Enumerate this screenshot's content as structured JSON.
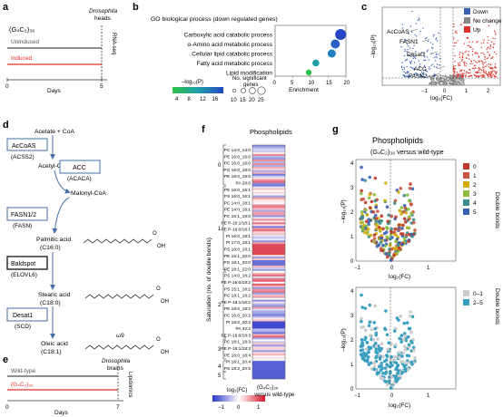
{
  "panel_labels": {
    "a": "a",
    "b": "b",
    "c": "c",
    "d": "d",
    "e": "e",
    "f": "f",
    "g": "g"
  },
  "panel_a": {
    "genotype": "(G₄C₂)₃₆",
    "uninduced": "Uninduced",
    "induced": "Induced",
    "endpoint": "Drosophila heads",
    "assay": "RNA-seq",
    "axis_label": "Days",
    "ticks": [
      "0",
      "5"
    ],
    "colors": {
      "uninduced": "#4a4a4a",
      "induced": "#e0322a"
    }
  },
  "panel_b": {
    "title": "GO biological process (down regulated genes)",
    "xlabel": "Enrichment",
    "legend_size_title": "No. significant genes",
    "legend_color_title": "–log₁₀(P)",
    "size_ticks": [
      "10",
      "15",
      "20",
      "25"
    ],
    "color_ticks": [
      "4",
      "8",
      "12",
      "16"
    ]
  },
  "panel_c": {
    "ylabel": "–log₁₀(P)",
    "xlabel": "log₂(FC)",
    "legend": [
      "Down",
      "No change",
      "Up"
    ],
    "colors": {
      "down": "#3a62b5",
      "nochange": "#8a8a8a",
      "up": "#e0322a"
    },
    "gene_labels": [
      "AcCoAS",
      "FASN1",
      "Desat1",
      "ACC",
      "FASN2"
    ],
    "xticks": [
      "−1",
      "0",
      "1",
      "2"
    ]
  },
  "panel_d": {
    "start": "Acetate + CoA",
    "enzymes": [
      {
        "name": "AcCoAS",
        "human": "(ACSS2)"
      },
      {
        "name": "ACC",
        "human": "(ACACA)"
      },
      {
        "name": "FASN1/2",
        "human": "(FASN)"
      },
      {
        "name": "Baldspot",
        "human": "(ELOVL6)"
      },
      {
        "name": "Desat1",
        "human": "(SCD)"
      }
    ],
    "metabolites": [
      "Acetyl-CoA",
      "Malonyl-CoA",
      "Palmitic acid",
      "(C16:0)",
      "Stearic acid",
      "(C18:0)",
      "Oleic acid",
      "(C18:1)"
    ],
    "oh": "OH",
    "o": "O",
    "omega": "ω9"
  },
  "panel_e": {
    "wildtype": "Wild-type",
    "mutant": "(G₄C₂)₃₆",
    "endpoint": "Drosophila brains",
    "assay": "Lipidomics",
    "axis_label": "Days",
    "ticks": [
      "0",
      "7"
    ]
  },
  "panel_f": {
    "title": "Phospholipids",
    "ylabel": "Saturation (no. of double bonds)",
    "colorbar_title": "log₂(FC)",
    "colorbar_ticks": [
      "−1",
      "0",
      "1"
    ],
    "column_label_1": "(G₄C₂)₃₆",
    "column_label_2": "versus wild-type",
    "groups": [
      "0",
      "1",
      "2",
      "3",
      "4",
      "5"
    ],
    "lipids": [
      "PC 14:0_14:0",
      "PE 16:0_16:0",
      "PC 16:0_16:0",
      "PG 16:0_18:0",
      "PE 18:0_18:0",
      "PA 28:0",
      "PE 16:0_16:1",
      "PS 16:0_16:1",
      "PC 14:0_18:1",
      "PE 14:0_18:1",
      "PC 16:1_18:0",
      "PE P-16:1/18:1",
      "PE P-16:0/18:1",
      "PI 16:0_18:1",
      "PI 17:0_18:1",
      "PS 18:0_18:1",
      "PE 16:1_20:0",
      "PG 18:1_20:0",
      "PE 18:1_22:0",
      "PS 14:0_18:2",
      "PE P-16:0/18:2",
      "PS 15:1_18:2",
      "PC 18:1_18:2",
      "PE P-18:1/18:2",
      "PE 18:0_18:2",
      "PC 16:0_20:2",
      "PI 18:0_20:2",
      "PA 32:2",
      "PE P-16:0/18:3",
      "PC 18:1_18:3",
      "PE P-18:1/18:3",
      "PE 16:0_18:4",
      "PI 18:1_20:4",
      "PS 18:2_20:5"
    ]
  },
  "panel_g": {
    "title": "Phospholipids",
    "subtitle": "(G₄C₂)₃₆ versus wild-type",
    "ylabel": "–log₁₀(P)",
    "xlabel": "log₂(FC)",
    "legend1_title": "Double bonds",
    "legend1": [
      "0",
      "1",
      "2",
      "3",
      "4",
      "5"
    ],
    "legend1_colors": [
      "#c0392b",
      "#c8553d",
      "#d4ac0d",
      "#8fbc3c",
      "#3d8d8d",
      "#3a62b5"
    ],
    "legend2_title": "Double bonds",
    "legend2": [
      "0–1",
      "2–5"
    ],
    "legend2_colors": [
      "#cccccc",
      "#3aa0c0"
    ],
    "top_yticks": [
      "0",
      "1",
      "2",
      "3",
      "4"
    ],
    "bottom_yticks": [
      "0",
      "1",
      "2",
      "3",
      "4"
    ],
    "xticks": [
      "−1",
      "0",
      "1"
    ]
  }
}
